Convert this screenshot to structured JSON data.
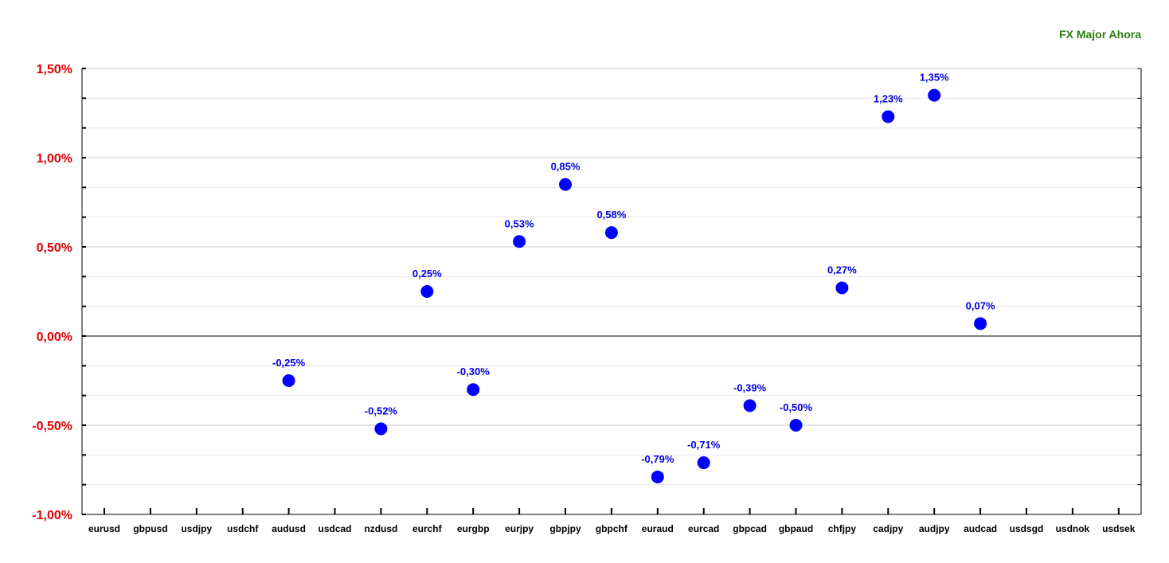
{
  "title": "FX Major Ahora",
  "colors": {
    "title": "#2e7d10",
    "y_ticks": "#e00000",
    "points": "#0000ff",
    "labels": "#0000e0"
  },
  "chart_data": {
    "type": "scatter",
    "title": "FX Major Ahora",
    "categories": [
      "eurusd",
      "gbpusd",
      "usdjpy",
      "usdchf",
      "audusd",
      "usdcad",
      "nzdusd",
      "eurchf",
      "eurgbp",
      "eurjpy",
      "gbpjpy",
      "gbpchf",
      "euraud",
      "eurcad",
      "gbpcad",
      "gbpaud",
      "chfjpy",
      "cadjpy",
      "audjpy",
      "audcad",
      "usdsgd",
      "usdnok",
      "usdsek"
    ],
    "values": [
      null,
      null,
      null,
      null,
      -0.25,
      null,
      -0.52,
      0.25,
      -0.3,
      0.53,
      0.85,
      0.58,
      -0.79,
      -0.71,
      -0.39,
      -0.5,
      0.27,
      1.23,
      1.35,
      0.07,
      null,
      null,
      null
    ],
    "value_labels": [
      null,
      null,
      null,
      null,
      "-0,25%",
      null,
      "-0,52%",
      "0,25%",
      "-0,30%",
      "0,53%",
      "0,85%",
      "0,58%",
      "-0,79%",
      "-0,71%",
      "-0,39%",
      "-0,50%",
      "0,27%",
      "1,23%",
      "1,35%",
      "0,07%",
      null,
      null,
      null
    ],
    "ylim": [
      -1.0,
      1.5
    ],
    "y_ticks": [
      1.5,
      1.0,
      0.5,
      0.0,
      -0.5,
      -1.0
    ],
    "y_tick_labels": [
      "1,50%",
      "1,00%",
      "0,50%",
      "0,00%",
      "-0,50%",
      "-1,00%"
    ],
    "xlabel": "",
    "ylabel": "",
    "grid": true
  }
}
